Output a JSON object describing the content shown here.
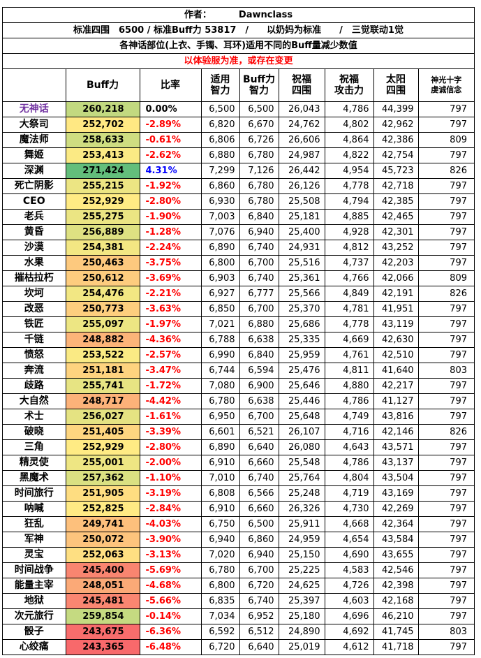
{
  "header": {
    "author_label": "作者：",
    "author_name": "Dawnclass",
    "standard_line": "标准四围　6500 / 标准Buff力 53817　/　　以奶妈为标准　　/　三觉联动1觉",
    "description": "各神话部位(上衣、手镯、耳环)适用不同的Buff量减少数值",
    "note": "以体验服为准，或存在变更"
  },
  "columns": [
    "",
    "Buff力",
    "比率",
    "适用\n智力",
    "Buff力\n智力",
    "祝福\n四围",
    "祝福\n攻击力",
    "太阳\n四围",
    "神光十字\n虔诚信念"
  ],
  "colors": {
    "text_red": "#ff0000",
    "text_blue": "#0000ff",
    "text_purple": "#7030a0",
    "scale_low": "#f8696b",
    "scale_mid": "#ffeb84",
    "scale_high": "#63be7b"
  },
  "buff_scale": {
    "min": 243365,
    "mid": 252929,
    "max": 271424
  },
  "rows": [
    {
      "name": "无神话",
      "buff": "260,218",
      "buff_value": 260218,
      "ratio": "0.00%",
      "ratio_value": 0.0,
      "int_apply": "6,500",
      "int_buff": "6,500",
      "bless_stat": "26,043",
      "bless_atk": "4,786",
      "sun_stat": "44,399",
      "cross": "797"
    },
    {
      "name": "大祭司",
      "buff": "252,702",
      "buff_value": 252702,
      "ratio": "-2.89%",
      "ratio_value": -2.89,
      "int_apply": "6,820",
      "int_buff": "6,670",
      "bless_stat": "24,762",
      "bless_atk": "4,802",
      "sun_stat": "42,962",
      "cross": "797"
    },
    {
      "name": "魔法师",
      "buff": "258,633",
      "buff_value": 258633,
      "ratio": "-0.61%",
      "ratio_value": -0.61,
      "int_apply": "6,806",
      "int_buff": "6,726",
      "bless_stat": "26,606",
      "bless_atk": "4,864",
      "sun_stat": "42,386",
      "cross": "809"
    },
    {
      "name": "舞姬",
      "buff": "253,413",
      "buff_value": 253413,
      "ratio": "-2.62%",
      "ratio_value": -2.62,
      "int_apply": "6,880",
      "int_buff": "6,780",
      "bless_stat": "24,987",
      "bless_atk": "4,822",
      "sun_stat": "42,754",
      "cross": "797"
    },
    {
      "name": "深渊",
      "buff": "271,424",
      "buff_value": 271424,
      "ratio": "4.31%",
      "ratio_value": 4.31,
      "int_apply": "7,299",
      "int_buff": "7,126",
      "bless_stat": "26,442",
      "bless_atk": "4,954",
      "sun_stat": "45,723",
      "cross": "826"
    },
    {
      "name": "死亡阴影",
      "buff": "255,215",
      "buff_value": 255215,
      "ratio": "-1.92%",
      "ratio_value": -1.92,
      "int_apply": "6,860",
      "int_buff": "6,780",
      "bless_stat": "26,126",
      "bless_atk": "4,778",
      "sun_stat": "42,718",
      "cross": "797"
    },
    {
      "name": "CEO",
      "buff": "252,929",
      "buff_value": 252929,
      "ratio": "-2.80%",
      "ratio_value": -2.8,
      "int_apply": "6,930",
      "int_buff": "6,780",
      "bless_stat": "25,508",
      "bless_atk": "4,794",
      "sun_stat": "42,385",
      "cross": "797"
    },
    {
      "name": "老兵",
      "buff": "255,275",
      "buff_value": 255275,
      "ratio": "-1.90%",
      "ratio_value": -1.9,
      "int_apply": "7,003",
      "int_buff": "6,840",
      "bless_stat": "25,181",
      "bless_atk": "4,885",
      "sun_stat": "42,465",
      "cross": "797"
    },
    {
      "name": "黄昏",
      "buff": "256,889",
      "buff_value": 256889,
      "ratio": "-1.28%",
      "ratio_value": -1.28,
      "int_apply": "7,076",
      "int_buff": "6,940",
      "bless_stat": "25,400",
      "bless_atk": "4,928",
      "sun_stat": "42,301",
      "cross": "797"
    },
    {
      "name": "沙漠",
      "buff": "254,381",
      "buff_value": 254381,
      "ratio": "-2.24%",
      "ratio_value": -2.24,
      "int_apply": "6,890",
      "int_buff": "6,740",
      "bless_stat": "24,931",
      "bless_atk": "4,812",
      "sun_stat": "43,252",
      "cross": "797"
    },
    {
      "name": "水果",
      "buff": "250,463",
      "buff_value": 250463,
      "ratio": "-3.75%",
      "ratio_value": -3.75,
      "int_apply": "6,800",
      "int_buff": "6,700",
      "bless_stat": "25,516",
      "bless_atk": "4,737",
      "sun_stat": "42,203",
      "cross": "797"
    },
    {
      "name": "摧枯拉朽",
      "buff": "250,612",
      "buff_value": 250612,
      "ratio": "-3.69%",
      "ratio_value": -3.69,
      "int_apply": "6,903",
      "int_buff": "6,740",
      "bless_stat": "25,361",
      "bless_atk": "4,766",
      "sun_stat": "42,066",
      "cross": "809"
    },
    {
      "name": "坎坷",
      "buff": "254,476",
      "buff_value": 254476,
      "ratio": "-2.21%",
      "ratio_value": -2.21,
      "int_apply": "6,927",
      "int_buff": "6,777",
      "bless_stat": "25,566",
      "bless_atk": "4,849",
      "sun_stat": "42,191",
      "cross": "826"
    },
    {
      "name": "改恶",
      "buff": "250,773",
      "buff_value": 250773,
      "ratio": "-3.63%",
      "ratio_value": -3.63,
      "int_apply": "6,850",
      "int_buff": "6,700",
      "bless_stat": "25,370",
      "bless_atk": "4,781",
      "sun_stat": "41,951",
      "cross": "797"
    },
    {
      "name": "铁匠",
      "buff": "255,097",
      "buff_value": 255097,
      "ratio": "-1.97%",
      "ratio_value": -1.97,
      "int_apply": "7,021",
      "int_buff": "6,880",
      "bless_stat": "25,686",
      "bless_atk": "4,778",
      "sun_stat": "43,119",
      "cross": "797"
    },
    {
      "name": "千链",
      "buff": "248,882",
      "buff_value": 248882,
      "ratio": "-4.36%",
      "ratio_value": -4.36,
      "int_apply": "6,788",
      "int_buff": "6,638",
      "bless_stat": "25,335",
      "bless_atk": "4,669",
      "sun_stat": "42,630",
      "cross": "797"
    },
    {
      "name": "愤怒",
      "buff": "253,522",
      "buff_value": 253522,
      "ratio": "-2.57%",
      "ratio_value": -2.57,
      "int_apply": "6,990",
      "int_buff": "6,840",
      "bless_stat": "25,959",
      "bless_atk": "4,761",
      "sun_stat": "42,510",
      "cross": "797"
    },
    {
      "name": "奔流",
      "buff": "251,181",
      "buff_value": 251181,
      "ratio": "-3.47%",
      "ratio_value": -3.47,
      "int_apply": "6,744",
      "int_buff": "6,594",
      "bless_stat": "25,476",
      "bless_atk": "4,811",
      "sun_stat": "41,640",
      "cross": "803"
    },
    {
      "name": "歧路",
      "buff": "255,741",
      "buff_value": 255741,
      "ratio": "-1.72%",
      "ratio_value": -1.72,
      "int_apply": "7,080",
      "int_buff": "6,900",
      "bless_stat": "25,646",
      "bless_atk": "4,880",
      "sun_stat": "42,217",
      "cross": "797"
    },
    {
      "name": "大自然",
      "buff": "248,717",
      "buff_value": 248717,
      "ratio": "-4.42%",
      "ratio_value": -4.42,
      "int_apply": "6,780",
      "int_buff": "6,638",
      "bless_stat": "25,446",
      "bless_atk": "4,786",
      "sun_stat": "41,127",
      "cross": "797"
    },
    {
      "name": "术士",
      "buff": "256,027",
      "buff_value": 256027,
      "ratio": "-1.61%",
      "ratio_value": -1.61,
      "int_apply": "6,950",
      "int_buff": "6,700",
      "bless_stat": "25,648",
      "bless_atk": "4,749",
      "sun_stat": "43,816",
      "cross": "797"
    },
    {
      "name": "破晓",
      "buff": "251,405",
      "buff_value": 251405,
      "ratio": "-3.39%",
      "ratio_value": -3.39,
      "int_apply": "6,601",
      "int_buff": "6,521",
      "bless_stat": "26,107",
      "bless_atk": "4,716",
      "sun_stat": "42,146",
      "cross": "826"
    },
    {
      "name": "三角",
      "buff": "252,929",
      "buff_value": 252929,
      "ratio": "-2.80%",
      "ratio_value": -2.8,
      "int_apply": "6,890",
      "int_buff": "6,640",
      "bless_stat": "26,080",
      "bless_atk": "4,643",
      "sun_stat": "43,571",
      "cross": "797"
    },
    {
      "name": "精灵使",
      "buff": "255,001",
      "buff_value": 255001,
      "ratio": "-2.00%",
      "ratio_value": -2.0,
      "int_apply": "6,910",
      "int_buff": "6,660",
      "bless_stat": "25,548",
      "bless_atk": "4,786",
      "sun_stat": "43,137",
      "cross": "797"
    },
    {
      "name": "黑魔术",
      "buff": "257,362",
      "buff_value": 257362,
      "ratio": "-1.10%",
      "ratio_value": -1.1,
      "int_apply": "7,010",
      "int_buff": "6,740",
      "bless_stat": "25,764",
      "bless_atk": "4,804",
      "sun_stat": "43,504",
      "cross": "797"
    },
    {
      "name": "时间旅行",
      "buff": "251,905",
      "buff_value": 251905,
      "ratio": "-3.19%",
      "ratio_value": -3.19,
      "int_apply": "6,808",
      "int_buff": "6,566",
      "bless_stat": "25,248",
      "bless_atk": "4,719",
      "sun_stat": "43,169",
      "cross": "797"
    },
    {
      "name": "呐喊",
      "buff": "252,825",
      "buff_value": 252825,
      "ratio": "-2.84%",
      "ratio_value": -2.84,
      "int_apply": "6,910",
      "int_buff": "6,660",
      "bless_stat": "26,326",
      "bless_atk": "4,730",
      "sun_stat": "42,269",
      "cross": "797"
    },
    {
      "name": "狂乱",
      "buff": "249,741",
      "buff_value": 249741,
      "ratio": "-4.03%",
      "ratio_value": -4.03,
      "int_apply": "6,750",
      "int_buff": "6,500",
      "bless_stat": "25,911",
      "bless_atk": "4,668",
      "sun_stat": "42,364",
      "cross": "797"
    },
    {
      "name": "军神",
      "buff": "250,072",
      "buff_value": 250072,
      "ratio": "-3.90%",
      "ratio_value": -3.9,
      "int_apply": "6,940",
      "int_buff": "6,860",
      "bless_stat": "24,959",
      "bless_atk": "4,654",
      "sun_stat": "43,584",
      "cross": "797"
    },
    {
      "name": "灵宝",
      "buff": "252,063",
      "buff_value": 252063,
      "ratio": "-3.13%",
      "ratio_value": -3.13,
      "int_apply": "7,020",
      "int_buff": "6,940",
      "bless_stat": "25,150",
      "bless_atk": "4,690",
      "sun_stat": "43,655",
      "cross": "797"
    },
    {
      "name": "时间战争",
      "buff": "245,400",
      "buff_value": 245400,
      "ratio": "-5.69%",
      "ratio_value": -5.69,
      "int_apply": "6,780",
      "int_buff": "6,700",
      "bless_stat": "25,225",
      "bless_atk": "4,583",
      "sun_stat": "42,546",
      "cross": "797"
    },
    {
      "name": "能量主宰",
      "buff": "248,051",
      "buff_value": 248051,
      "ratio": "-4.68%",
      "ratio_value": -4.68,
      "int_apply": "6,800",
      "int_buff": "6,720",
      "bless_stat": "24,625",
      "bless_atk": "4,726",
      "sun_stat": "42,398",
      "cross": "797"
    },
    {
      "name": "地狱",
      "buff": "245,481",
      "buff_value": 245481,
      "ratio": "-5.66%",
      "ratio_value": -5.66,
      "int_apply": "6,835",
      "int_buff": "6,740",
      "bless_stat": "25,397",
      "bless_atk": "4,603",
      "sun_stat": "42,168",
      "cross": "797"
    },
    {
      "name": "次元旅行",
      "buff": "259,854",
      "buff_value": 259854,
      "ratio": "-0.14%",
      "ratio_value": -0.14,
      "int_apply": "7,034",
      "int_buff": "6,952",
      "bless_stat": "25,180",
      "bless_atk": "4,696",
      "sun_stat": "46,210",
      "cross": "797"
    },
    {
      "name": "骰子",
      "buff": "243,675",
      "buff_value": 243675,
      "ratio": "-6.36%",
      "ratio_value": -6.36,
      "int_apply": "6,592",
      "int_buff": "6,512",
      "bless_stat": "24,890",
      "bless_atk": "4,692",
      "sun_stat": "41,745",
      "cross": "803"
    },
    {
      "name": "心绞痛",
      "buff": "243,365",
      "buff_value": 243365,
      "ratio": "-6.48%",
      "ratio_value": -6.48,
      "int_apply": "6,720",
      "int_buff": "6,640",
      "bless_stat": "25,019",
      "bless_atk": "4,612",
      "sun_stat": "41,718",
      "cross": "797"
    }
  ]
}
